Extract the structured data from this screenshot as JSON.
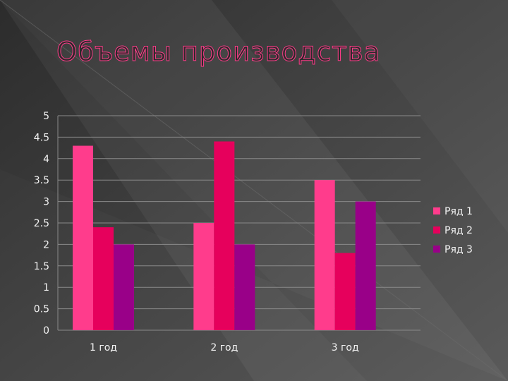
{
  "slide": {
    "title": "Объемы производства",
    "background": "#3f3f3f",
    "title_color": "#ff3c8a"
  },
  "chart_data": {
    "type": "bar",
    "categories": [
      "1 год",
      "2 год",
      "3 год"
    ],
    "series": [
      {
        "name": "Ряд 1",
        "values": [
          4.3,
          2.5,
          3.5
        ],
        "color": "#ff3c8c"
      },
      {
        "name": "Ряд 2",
        "values": [
          2.4,
          4.4,
          1.8
        ],
        "color": "#e6005c"
      },
      {
        "name": "Ряд 3",
        "values": [
          2.0,
          2.0,
          3.0
        ],
        "color": "#990088"
      }
    ],
    "ylim": [
      0,
      5
    ],
    "yticks": [
      "0",
      "0.5",
      "1",
      "1.5",
      "2",
      "2.5",
      "3",
      "3.5",
      "4",
      "4.5",
      "5"
    ],
    "grid": true,
    "legend_position": "right",
    "title": "",
    "xlabel": "",
    "ylabel": ""
  }
}
